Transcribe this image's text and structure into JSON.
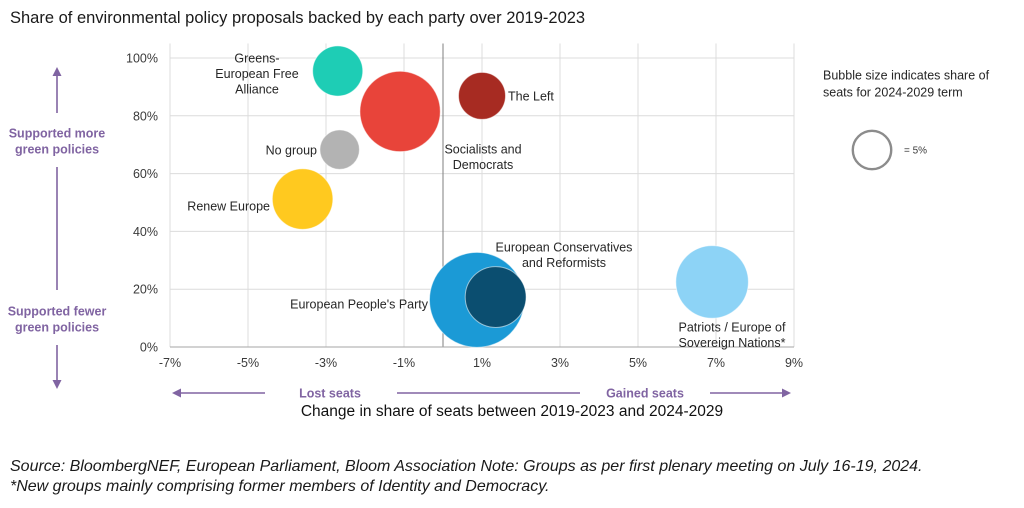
{
  "chart_data": {
    "type": "scatter",
    "variant": "bubble",
    "title": "Share of environmental policy proposals backed by each party over 2019-2023",
    "xlabel": "Change in share of seats between 2019-2023 and 2024-2029",
    "ylabel": "",
    "xlim": [
      -7,
      9
    ],
    "ylim": [
      0,
      105
    ],
    "x_tick_values": [
      -7,
      -5,
      -3,
      -1,
      1,
      3,
      5,
      7,
      9
    ],
    "x_tick_labels": [
      "-7%",
      "-5%",
      "-3%",
      "-1%",
      "1%",
      "3%",
      "5%",
      "7%",
      "9%"
    ],
    "y_tick_values": [
      0,
      20,
      40,
      60,
      80,
      100
    ],
    "y_tick_labels": [
      "0%",
      "20%",
      "40%",
      "60%",
      "80%",
      "100%"
    ],
    "grid": true,
    "reference_line_x": 0,
    "size_measure": "Share of seats for 2024-2029 term (%)",
    "series": [
      {
        "name": "Greens-European Free Alliance",
        "label_lines": [
          "Greens-",
          "European Free",
          "Alliance"
        ],
        "x": -2.7,
        "y": 95.5,
        "size": 7.4,
        "color": "#1ECDB5"
      },
      {
        "name": "Socialists and Democrats",
        "label_lines": [
          "Socialists and",
          "Democrats"
        ],
        "x": -1.1,
        "y": 81.5,
        "size": 19.0,
        "color": "#E8443A"
      },
      {
        "name": "No group",
        "label_lines": [
          "No group"
        ],
        "x": -2.65,
        "y": 68.3,
        "size": 4.6,
        "color": "#B3B3B3"
      },
      {
        "name": "Renew Europe",
        "label_lines": [
          "Renew Europe"
        ],
        "x": -3.6,
        "y": 51.2,
        "size": 10.8,
        "color": "#FFC91F"
      },
      {
        "name": "The Left",
        "label_lines": [
          "The Left"
        ],
        "x": 1.0,
        "y": 86.9,
        "size": 6.5,
        "color": "#A72B22"
      },
      {
        "name": "European People's Party",
        "label_lines": [
          "European People's Party"
        ],
        "x": 0.87,
        "y": 16.3,
        "size": 26.5,
        "color": "#1B9AD6"
      },
      {
        "name": "European Conservatives and Reformists",
        "label_lines": [
          "European Conservatives",
          "and Reformists"
        ],
        "x": 1.35,
        "y": 17.3,
        "size": 10.9,
        "color": "#0B4E70"
      },
      {
        "name": "Patriots / Europe of Sovereign Nations*",
        "label_lines": [
          "Patriots / Europe of",
          "Sovereign Nations*"
        ],
        "x": 6.9,
        "y": 22.5,
        "size": 15.5,
        "color": "#8DD3F6"
      }
    ],
    "size_legend": {
      "title_lines": [
        "Bubble size indicates share of",
        "seats for 2024-2029 term"
      ],
      "value": 5,
      "label": "= 5%",
      "placement": "right",
      "circle_color": "#8C8C8C"
    }
  },
  "direction_labels": {
    "color": "#8064A2",
    "up_lines": [
      "Supported more",
      "green policies"
    ],
    "down_lines": [
      "Supported fewer",
      "green policies"
    ],
    "left": "Lost seats",
    "right": "Gained seats"
  },
  "footer": {
    "source": "Source: BloombergNEF, European Parliament, Bloom Association  Note: Groups as per first plenary meeting on July 16-19, 2024.",
    "note": "*New groups mainly comprising former members of Identity and Democracy."
  }
}
